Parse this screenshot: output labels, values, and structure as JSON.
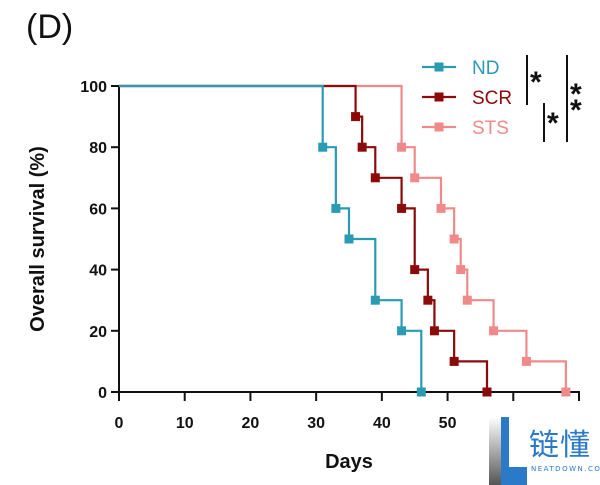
{
  "panel_label": "(D)",
  "watermark": {
    "text": "链懂",
    "subtext": "NEATDOWN.COM"
  },
  "chart_data": {
    "type": "line",
    "subtype": "kaplan-meier-step",
    "title": "",
    "xlabel": "Days",
    "ylabel": "Overall survival (%)",
    "xlim": [
      0,
      70
    ],
    "ylim": [
      0,
      100
    ],
    "x_ticks": [
      0,
      10,
      20,
      30,
      40,
      50,
      60,
      70
    ],
    "x_tick_labels": [
      "0",
      "10",
      "20",
      "30",
      "40",
      "50",
      "",
      ""
    ],
    "y_ticks": [
      0,
      20,
      40,
      60,
      80,
      100
    ],
    "y_tick_labels": [
      "0",
      "20",
      "40",
      "60",
      "80",
      "100"
    ],
    "grid": false,
    "legend_position": "top-right",
    "series": [
      {
        "name": "ND",
        "color": "#2a9bb3",
        "x": [
          0,
          31,
          33,
          35,
          39,
          43,
          46
        ],
        "y": [
          100,
          80,
          60,
          50,
          30,
          20,
          0
        ]
      },
      {
        "name": "SCR",
        "color": "#8b0a0a",
        "x": [
          0,
          36,
          37,
          39,
          43,
          45,
          47,
          48,
          51,
          56
        ],
        "y": [
          100,
          90,
          80,
          70,
          60,
          40,
          30,
          20,
          10,
          0
        ]
      },
      {
        "name": "STS",
        "color": "#f08a8a",
        "x": [
          0,
          43,
          45,
          49,
          51,
          52,
          53,
          57,
          62,
          68
        ],
        "y": [
          100,
          80,
          70,
          60,
          50,
          40,
          30,
          20,
          10,
          0
        ]
      }
    ],
    "significance": [
      {
        "groups": [
          "ND",
          "SCR"
        ],
        "label": "*"
      },
      {
        "groups": [
          "SCR",
          "STS"
        ],
        "label": "*"
      },
      {
        "groups": [
          "ND",
          "STS"
        ],
        "label": "**"
      }
    ]
  }
}
